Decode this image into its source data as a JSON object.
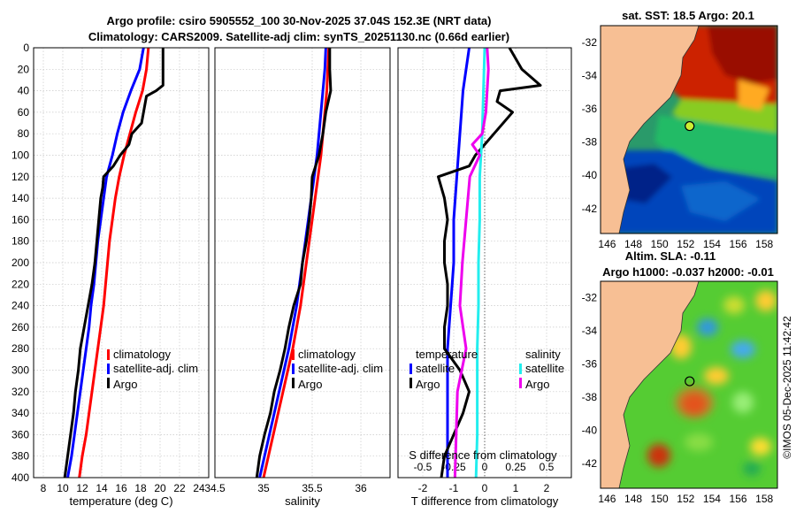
{
  "title_line1": "Argo profile: csiro 5905552_100 30-Nov-2025 37.04S 152.3E (NRT data)",
  "title_line2": "Climatology: CARS2009. Satellite-adj clim: synTS_20251130.nc (0.66d earlier)",
  "stamp": "©IMOS 05-Dec-2025 11:42:42",
  "colors": {
    "climatology": "#ff0000",
    "satellite": "#0000ff",
    "argo": "#000000",
    "sat_s": "#22eeee",
    "argo_s": "#ee00ee"
  },
  "chart_data": [
    {
      "id": "temperature",
      "type": "line",
      "xlabel": "temperature (deg C)",
      "ylabel": "",
      "xlim": [
        7,
        25
      ],
      "ylim": [
        0,
        400
      ],
      "xticks": [
        8,
        10,
        12,
        14,
        16,
        18,
        20,
        22,
        24
      ],
      "xticklabels": [
        "8",
        "10",
        "12",
        "14",
        "16",
        "18",
        "20",
        "22",
        "24"
      ],
      "yticks": [
        0,
        20,
        40,
        60,
        80,
        100,
        120,
        140,
        160,
        180,
        200,
        220,
        240,
        260,
        280,
        300,
        320,
        340,
        360,
        380,
        400
      ],
      "yticklabels": [
        "0",
        "20",
        "40",
        "60",
        "80",
        "100",
        "120",
        "140",
        "160",
        "180",
        "200",
        "220",
        "240",
        "260",
        "280",
        "300",
        "320",
        "340",
        "360",
        "380",
        "400"
      ],
      "legend": [
        "climatology",
        "satellite-adj. clim",
        "Argo"
      ],
      "series": [
        {
          "name": "climatology",
          "color": "#ff0000",
          "depth": [
            0,
            20,
            40,
            60,
            80,
            100,
            120,
            140,
            160,
            180,
            200,
            220,
            240,
            260,
            280,
            300,
            320,
            340,
            360,
            380,
            400
          ],
          "values": [
            18.8,
            18.6,
            18.2,
            17.5,
            16.9,
            16.3,
            15.8,
            15.4,
            15.1,
            14.8,
            14.6,
            14.4,
            14.2,
            13.9,
            13.6,
            13.3,
            13.0,
            12.7,
            12.4,
            12.0,
            11.7
          ]
        },
        {
          "name": "satellite-adj. clim",
          "color": "#0000ff",
          "depth": [
            0,
            20,
            40,
            60,
            80,
            100,
            120,
            140,
            160,
            180,
            200,
            220,
            240,
            260,
            280,
            300,
            320,
            340,
            360,
            380,
            400
          ],
          "values": [
            18.3,
            17.9,
            17.0,
            16.2,
            15.6,
            15.1,
            14.5,
            14.2,
            13.9,
            13.6,
            13.4,
            13.2,
            12.9,
            12.7,
            12.4,
            12.1,
            11.8,
            11.5,
            11.2,
            10.9,
            10.5
          ]
        },
        {
          "name": "Argo",
          "color": "#000000",
          "depth": [
            0,
            20,
            35,
            40,
            45,
            60,
            70,
            80,
            90,
            100,
            110,
            120,
            130,
            140,
            160,
            180,
            200,
            220,
            240,
            260,
            280,
            300,
            320,
            340,
            360,
            380,
            400
          ],
          "values": [
            20.3,
            20.3,
            20.3,
            19.6,
            18.6,
            18.3,
            18.1,
            17.1,
            16.8,
            15.9,
            15.2,
            14.2,
            14.1,
            13.9,
            13.7,
            13.5,
            13.3,
            13.0,
            12.6,
            12.2,
            11.8,
            11.6,
            11.3,
            11.1,
            10.8,
            10.5,
            10.2
          ]
        }
      ]
    },
    {
      "id": "salinity",
      "type": "line",
      "xlabel": "salinity",
      "xlim": [
        34.5,
        36.3
      ],
      "ylim": [
        0,
        400
      ],
      "xticks": [
        34.5,
        35,
        35.5,
        36
      ],
      "xticklabels": [
        "34.5",
        "35",
        "35.5",
        "36"
      ],
      "legend": [
        "climatology",
        "satellite-adj. clim",
        "Argo"
      ],
      "series": [
        {
          "name": "climatology",
          "color": "#ff0000",
          "depth": [
            0,
            20,
            40,
            60,
            80,
            100,
            120,
            140,
            160,
            180,
            200,
            220,
            240,
            260,
            280,
            300,
            320,
            340,
            360,
            380,
            400
          ],
          "values": [
            35.67,
            35.66,
            35.65,
            35.63,
            35.61,
            35.59,
            35.56,
            35.53,
            35.5,
            35.47,
            35.44,
            35.41,
            35.38,
            35.34,
            35.3,
            35.25,
            35.2,
            35.15,
            35.1,
            35.05,
            35.0
          ]
        },
        {
          "name": "satellite-adj. clim",
          "color": "#0000ff",
          "depth": [
            0,
            20,
            40,
            60,
            80,
            100,
            120,
            140,
            160,
            180,
            200,
            220,
            240,
            260,
            280,
            300,
            320,
            340,
            360,
            380,
            400
          ],
          "values": [
            35.64,
            35.63,
            35.61,
            35.59,
            35.57,
            35.55,
            35.52,
            35.49,
            35.46,
            35.43,
            35.4,
            35.37,
            35.34,
            35.3,
            35.26,
            35.21,
            35.16,
            35.11,
            35.06,
            35.01,
            34.96
          ]
        },
        {
          "name": "Argo",
          "color": "#000000",
          "depth": [
            0,
            20,
            40,
            60,
            80,
            100,
            120,
            140,
            160,
            180,
            200,
            220,
            240,
            260,
            280,
            300,
            320,
            340,
            360,
            380,
            400
          ],
          "values": [
            35.68,
            35.68,
            35.69,
            35.64,
            35.61,
            35.57,
            35.5,
            35.49,
            35.47,
            35.44,
            35.4,
            35.38,
            35.31,
            35.26,
            35.22,
            35.17,
            35.11,
            35.07,
            35.01,
            34.96,
            34.93
          ]
        }
      ]
    },
    {
      "id": "difference",
      "type": "line",
      "xlabel": "T difference from climatology",
      "top_xlabel": "S difference from climatology",
      "xlim": [
        -2.8,
        2.8
      ],
      "ylim": [
        0,
        400
      ],
      "xticks": [
        -2,
        -1,
        0,
        1,
        2
      ],
      "xticklabels": [
        "-2",
        "-1",
        "0",
        "1",
        "2"
      ],
      "s_xlim": [
        -0.7,
        0.7
      ],
      "s_xticks": [
        -0.5,
        -0.25,
        0,
        0.25,
        0.5
      ],
      "s_xticklabels": [
        "-0.5",
        "-0.25",
        "0",
        "0.25",
        "0.5"
      ],
      "legend_t_title": "temperature",
      "legend_s_title": "salinity",
      "legend_t": [
        "satellite",
        "Argo"
      ],
      "legend_s": [
        "satellite",
        "Argo"
      ],
      "series": [
        {
          "name": "T satellite",
          "color": "#0000ff",
          "depth": [
            0,
            40,
            80,
            120,
            160,
            200,
            240,
            280,
            320,
            360,
            400
          ],
          "values": [
            -0.5,
            -0.7,
            -0.8,
            -0.9,
            -1.0,
            -1.0,
            -1.1,
            -1.2,
            -1.2,
            -1.2,
            -1.2
          ]
        },
        {
          "name": "T Argo",
          "color": "#000000",
          "depth": [
            0,
            20,
            30,
            35,
            40,
            50,
            60,
            80,
            90,
            100,
            110,
            120,
            140,
            160,
            180,
            200,
            220,
            240,
            260,
            280,
            300,
            320,
            340,
            360,
            380,
            400
          ],
          "values": [
            0.8,
            1.2,
            1.6,
            1.8,
            0.5,
            0.4,
            0.9,
            0.3,
            0.0,
            -0.3,
            -0.5,
            -1.5,
            -1.3,
            -1.2,
            -1.3,
            -1.3,
            -1.2,
            -1.2,
            -1.3,
            -1.3,
            -0.8,
            -0.5,
            -0.7,
            -1.0,
            -1.3,
            -1.4
          ]
        },
        {
          "name": "S satellite",
          "color": "#22eeee",
          "depth": [
            0,
            40,
            80,
            120,
            160,
            200,
            240,
            280,
            320,
            360,
            400
          ],
          "values": [
            0.0,
            -0.01,
            -0.02,
            -0.04,
            -0.04,
            -0.05,
            -0.05,
            -0.06,
            -0.06,
            -0.06,
            -0.07
          ]
        },
        {
          "name": "S Argo",
          "color": "#ee00ee",
          "depth": [
            0,
            20,
            40,
            60,
            80,
            90,
            100,
            120,
            160,
            200,
            240,
            280,
            320,
            360,
            400
          ],
          "values": [
            0.02,
            0.03,
            0.02,
            0.01,
            -0.02,
            -0.1,
            -0.04,
            -0.12,
            -0.15,
            -0.18,
            -0.2,
            -0.15,
            -0.22,
            -0.23,
            -0.24
          ]
        }
      ]
    }
  ],
  "maps": [
    {
      "id": "sst-map",
      "title": "sat. SST: 18.5 Argo: 20.1",
      "xticks": [
        "146",
        "148",
        "150",
        "152",
        "154",
        "156",
        "158"
      ],
      "yticks": [
        "-32",
        "-34",
        "-36",
        "-38",
        "-40",
        "-42"
      ],
      "lon_range": [
        145.5,
        159
      ],
      "lat_range": [
        -31,
        -43.5
      ],
      "argo_lon": 152.3,
      "argo_lat": -37.04
    },
    {
      "id": "sla-map",
      "title_line1": "Altim. SLA: -0.11",
      "title_line2": "Argo h1000: -0.037 h2000: -0.01",
      "xticks": [
        "146",
        "148",
        "150",
        "152",
        "154",
        "156",
        "158"
      ],
      "yticks": [
        "-32",
        "-34",
        "-36",
        "-38",
        "-40",
        "-42"
      ],
      "lon_range": [
        145.5,
        159
      ],
      "lat_range": [
        -31,
        -43.5
      ],
      "argo_lon": 152.3,
      "argo_lat": -37.04
    }
  ]
}
